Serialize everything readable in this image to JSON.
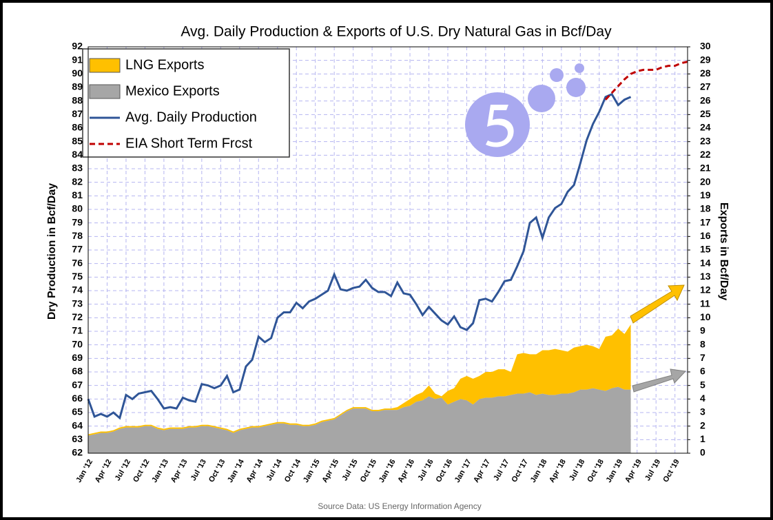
{
  "chart_data": {
    "type": "combo",
    "title": "Avg. Daily Production & Exports of U.S. Dry Natural Gas in Bcf/Day",
    "y_label": "Dry Production in Bcf/Day",
    "y2_label": "Exports in Bcf/Day",
    "source": "Source Data: US Energy Information Agency",
    "categories": [
      "Jan '12",
      null,
      null,
      "Apr '12",
      null,
      null,
      "Jul '12",
      null,
      null,
      "Oct '12",
      null,
      null,
      "Jan '13",
      null,
      null,
      "Apr '13",
      null,
      null,
      "Jul '13",
      null,
      null,
      "Oct '13",
      null,
      null,
      "Jan '14",
      null,
      null,
      "Apr '14",
      null,
      null,
      "Jul '14",
      null,
      null,
      "Oct '14",
      null,
      null,
      "Jan '15",
      null,
      null,
      "Apr '15",
      null,
      null,
      "Jul '15",
      null,
      null,
      "Oct '15",
      null,
      null,
      "Jan '16",
      null,
      null,
      "Apr '16",
      null,
      null,
      "Jul '16",
      null,
      null,
      "Oct '16",
      null,
      null,
      "Jan '17",
      null,
      null,
      "Apr '17",
      null,
      null,
      "Jul '17",
      null,
      null,
      "Oct '17",
      null,
      null,
      "Jan '18",
      null,
      null,
      "Apr '18",
      null,
      null,
      "Jul '18",
      null,
      null,
      "Oct '18",
      null,
      null,
      "Jan '19",
      null,
      null,
      "Apr '19",
      null,
      null,
      "Jul '19",
      null,
      null,
      "Oct '19",
      null,
      null
    ],
    "stacked": true,
    "grid": true,
    "legend": "upper left",
    "series": [
      {
        "name": "LNG Exports",
        "type": "area",
        "axis": "y2",
        "color": "#FFC000",
        "values": [
          0.1,
          0.1,
          0.1,
          0.1,
          0.1,
          0.1,
          0.1,
          0.1,
          0.1,
          0.1,
          0.1,
          0.1,
          0.1,
          0.1,
          0.1,
          0.1,
          0.1,
          0.1,
          0.1,
          0.1,
          0.1,
          0.1,
          0.1,
          0.1,
          0.1,
          0.1,
          0.1,
          0.1,
          0.1,
          0.1,
          0.1,
          0.1,
          0.1,
          0.1,
          0.1,
          0.1,
          0.1,
          0.1,
          0.1,
          0.1,
          0.1,
          0.1,
          0.1,
          0.1,
          0.1,
          0.1,
          0.1,
          0.1,
          0.1,
          0.2,
          0.3,
          0.5,
          0.5,
          0.6,
          0.8,
          0.4,
          0.1,
          1.0,
          1.0,
          1.5,
          1.8,
          1.9,
          1.7,
          1.9,
          1.9,
          2.0,
          2.0,
          1.7,
          2.9,
          3.0,
          2.8,
          3.0,
          3.2,
          3.3,
          3.4,
          3.2,
          3.1,
          3.3,
          3.2,
          3.3,
          3.1,
          3.0,
          4.0,
          3.9,
          4.3,
          4.1,
          4.8,
          null,
          null,
          null,
          null,
          null,
          null,
          null,
          null,
          null
        ]
      },
      {
        "name": "Mexico Exports",
        "type": "area",
        "axis": "y2",
        "color": "#A6A6A6",
        "values": [
          1.3,
          1.4,
          1.5,
          1.5,
          1.6,
          1.8,
          1.9,
          1.9,
          1.9,
          2.0,
          2.0,
          1.8,
          1.7,
          1.8,
          1.8,
          1.8,
          1.9,
          1.9,
          2.0,
          2.0,
          1.9,
          1.8,
          1.7,
          1.5,
          1.7,
          1.8,
          1.9,
          1.9,
          2.0,
          2.1,
          2.2,
          2.2,
          2.1,
          2.1,
          2.0,
          2.0,
          2.1,
          2.3,
          2.4,
          2.5,
          2.8,
          3.1,
          3.3,
          3.3,
          3.3,
          3.1,
          3.1,
          3.2,
          3.2,
          3.2,
          3.4,
          3.5,
          3.8,
          3.9,
          4.2,
          4.0,
          4.1,
          3.6,
          3.8,
          4.0,
          3.9,
          3.6,
          4.0,
          4.1,
          4.1,
          4.2,
          4.2,
          4.3,
          4.4,
          4.4,
          4.5,
          4.3,
          4.4,
          4.3,
          4.3,
          4.4,
          4.4,
          4.5,
          4.7,
          4.7,
          4.8,
          4.7,
          4.6,
          4.8,
          4.9,
          4.7,
          4.7,
          null,
          null,
          null,
          null,
          null,
          null,
          null,
          null,
          null
        ]
      },
      {
        "name": "Avg. Daily Production",
        "type": "line",
        "color": "#2F5597",
        "values": [
          66.0,
          64.7,
          64.9,
          64.7,
          65.0,
          64.6,
          66.3,
          66.0,
          66.4,
          66.5,
          66.6,
          66.0,
          65.3,
          65.4,
          65.3,
          66.1,
          65.9,
          65.8,
          67.1,
          67.0,
          66.8,
          67.0,
          67.7,
          66.5,
          66.7,
          68.4,
          68.9,
          70.6,
          70.2,
          70.5,
          72.0,
          72.4,
          72.4,
          73.1,
          72.7,
          73.2,
          73.4,
          73.7,
          74.0,
          75.2,
          74.1,
          74.0,
          74.2,
          74.3,
          74.8,
          74.2,
          73.9,
          73.9,
          73.6,
          74.6,
          73.8,
          73.7,
          73.0,
          72.2,
          72.8,
          72.3,
          71.8,
          71.5,
          72.1,
          71.3,
          71.1,
          71.6,
          73.3,
          73.4,
          73.2,
          73.9,
          74.7,
          74.8,
          75.8,
          76.9,
          79.0,
          79.4,
          77.9,
          79.4,
          80.1,
          80.4,
          81.3,
          81.8,
          83.4,
          85.1,
          86.3,
          87.2,
          88.3,
          88.5,
          87.7,
          88.1,
          88.3,
          null,
          null,
          null,
          null,
          null,
          null,
          null,
          null,
          null
        ]
      },
      {
        "name": "EIA Short Term Frcst",
        "type": "line",
        "style": "dashed",
        "color": "#C00000",
        "values": [
          null,
          null,
          null,
          null,
          null,
          null,
          null,
          null,
          null,
          null,
          null,
          null,
          null,
          null,
          null,
          null,
          null,
          null,
          null,
          null,
          null,
          null,
          null,
          null,
          null,
          null,
          null,
          null,
          null,
          null,
          null,
          null,
          null,
          null,
          null,
          null,
          null,
          null,
          null,
          null,
          null,
          null,
          null,
          null,
          null,
          null,
          null,
          null,
          null,
          null,
          null,
          null,
          null,
          null,
          null,
          null,
          null,
          null,
          null,
          null,
          null,
          null,
          null,
          null,
          null,
          null,
          null,
          null,
          null,
          null,
          null,
          null,
          null,
          null,
          null,
          null,
          null,
          null,
          null,
          null,
          null,
          null,
          88.1,
          88.6,
          89.1,
          89.6,
          90.0,
          90.2,
          90.3,
          90.3,
          90.3,
          90.5,
          90.6,
          90.6,
          90.8,
          90.9
        ]
      }
    ],
    "ylim": [
      62,
      92
    ],
    "yticks": [
      62,
      63,
      64,
      65,
      66,
      67,
      68,
      69,
      70,
      71,
      72,
      73,
      74,
      75,
      76,
      77,
      78,
      79,
      80,
      81,
      82,
      83,
      84,
      85,
      86,
      87,
      88,
      89,
      90,
      91,
      92
    ],
    "y2lim": [
      0,
      30
    ],
    "y2ticks": [
      0,
      1,
      2,
      3,
      4,
      5,
      6,
      7,
      8,
      9,
      10,
      11,
      12,
      13,
      14,
      15,
      16,
      17,
      18,
      19,
      20,
      21,
      22,
      23,
      24,
      25,
      26,
      27,
      28,
      29,
      30
    ]
  }
}
